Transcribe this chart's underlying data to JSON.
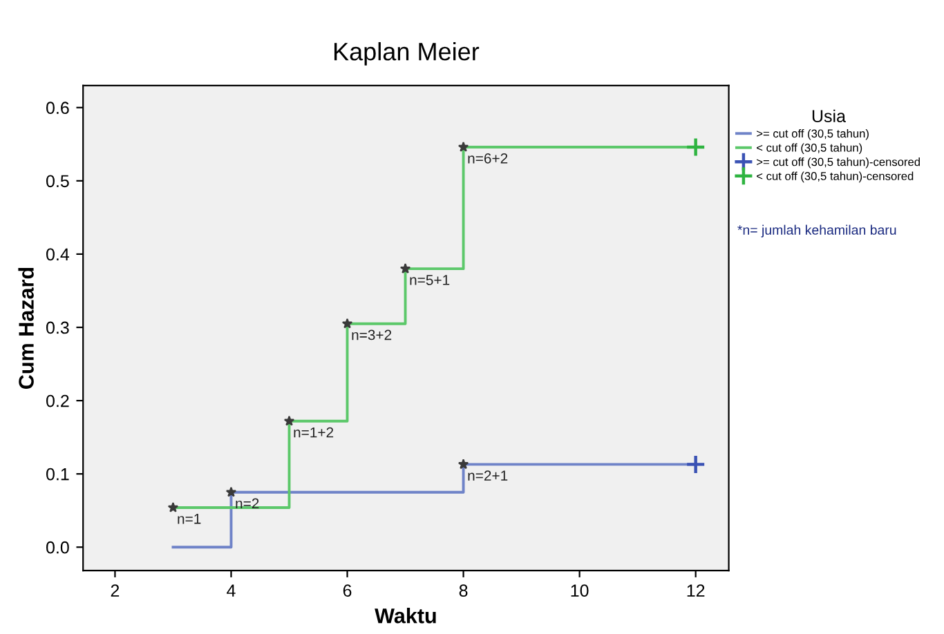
{
  "chart_data": {
    "type": "step",
    "title": "Kaplan Meier",
    "xlabel": "Waktu",
    "ylabel": "Cum Hazard",
    "legend_title": "Usia",
    "series": [
      {
        "name": ">= cut off (30,5 tahun)",
        "color": "#6f83c8",
        "marker": "none",
        "x": [
          3,
          4,
          8,
          12
        ],
        "values": [
          0,
          0.075,
          0.113,
          0.113
        ]
      },
      {
        "name": "< cut off (30,5 tahun)",
        "color": "#5cc86a",
        "marker": "none",
        "x": [
          3,
          5,
          6,
          7,
          8,
          12
        ],
        "values": [
          0.054,
          0.172,
          0.305,
          0.38,
          0.546,
          0.546
        ]
      },
      {
        "name": ">= cut off (30,5 tahun)-censored",
        "type": "scatter",
        "color": "#3a52b4",
        "marker": "cross",
        "x": [
          12
        ],
        "values": [
          0.113
        ]
      },
      {
        "name": "< cut off (30,5 tahun)-censored",
        "type": "scatter",
        "color": "#2fb441",
        "marker": "cross",
        "x": [
          12
        ],
        "values": [
          0.546
        ]
      },
      {
        "type": "scatter",
        "color": "#3a3a3a",
        "marker": "star",
        "x": [
          3,
          4,
          5,
          6,
          7,
          8,
          8
        ],
        "values": [
          0.054,
          0.075,
          0.172,
          0.305,
          0.38,
          0.546,
          0.113
        ]
      }
    ],
    "annotations": [
      {
        "text": "n=1",
        "x": 3,
        "y": 0.054
      },
      {
        "text": "n=2",
        "x": 4,
        "y": 0.075
      },
      {
        "text": "n=1+2",
        "x": 5,
        "y": 0.172
      },
      {
        "text": "n=3+2",
        "x": 6,
        "y": 0.305
      },
      {
        "text": "n=5+1",
        "x": 7,
        "y": 0.38
      },
      {
        "text": "n=6+2",
        "x": 8,
        "y": 0.546
      },
      {
        "text": "n=2+1",
        "x": 8,
        "y": 0.113
      },
      "*n= jumlah kehamilan baru"
    ],
    "xlim": [
      1.45,
      12.57
    ],
    "ylim": [
      -0.032,
      0.63
    ],
    "xticks": [
      2,
      4,
      6,
      8,
      10,
      12
    ],
    "yticks": [
      {
        "value": 0,
        "label": "0.0"
      },
      0.1,
      0.2,
      0.3,
      0.4,
      0.5,
      0.6
    ],
    "grid": false,
    "legend": "right"
  }
}
